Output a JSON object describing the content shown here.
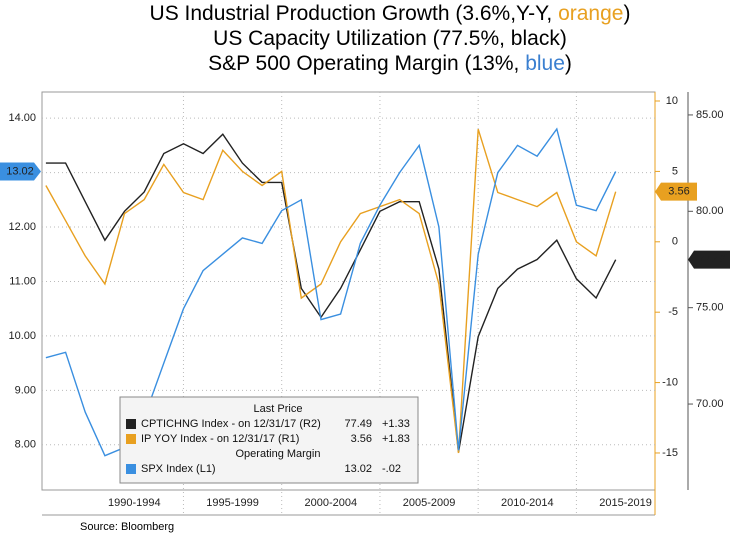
{
  "chart_data": {
    "type": "line",
    "title_lines": [
      {
        "text": "US Industrial Production Growth (3.6%,Y-Y, ",
        "highlight": "orange",
        "tail": ")",
        "highlight_color": "#e8a020"
      },
      {
        "text": "US Capacity Utilization (77.5%,  black)"
      },
      {
        "text": "S&P 500 Operating Margin (13%, ",
        "highlight": "blue",
        "tail": ")",
        "highlight_color": "#3a7fd0"
      }
    ],
    "source": "Source: Bloomberg",
    "x": [
      1988,
      1989,
      1990,
      1991,
      1992,
      1993,
      1994,
      1995,
      1996,
      1997,
      1998,
      1999,
      2000,
      2001,
      2002,
      2003,
      2004,
      2005,
      2006,
      2007,
      2008,
      2009,
      2010,
      2011,
      2012,
      2013,
      2014,
      2015,
      2016,
      2017
    ],
    "xlim": [
      1987.8,
      2019
    ],
    "xticks": [
      {
        "value": 1992.5,
        "label": "1990-1994"
      },
      {
        "value": 1997.5,
        "label": "1995-1999"
      },
      {
        "value": 2002.5,
        "label": "2000-2004"
      },
      {
        "value": 2007.5,
        "label": "2005-2009"
      },
      {
        "value": 2012.5,
        "label": "2010-2014"
      },
      {
        "value": 2017.5,
        "label": "2015-2019"
      }
    ],
    "ylim": [
      7.17,
      14.48
    ],
    "yticks": [
      {
        "value": 8,
        "label": "8.00"
      },
      {
        "value": 9,
        "label": "9.00"
      },
      {
        "value": 10,
        "label": "10.00"
      },
      {
        "value": 11,
        "label": "11.00"
      },
      {
        "value": 12,
        "label": "12.00"
      },
      {
        "value": 13,
        "label": "13.00"
      },
      {
        "value": 14,
        "label": "14.00"
      }
    ],
    "y2lim": [
      -17.63,
      10.64
    ],
    "y2ticks": [
      -15,
      -10,
      -5,
      0,
      5,
      10
    ],
    "y3lim": [
      65.54,
      86.19
    ],
    "y3ticks": [
      {
        "value": 70,
        "label": "70.00"
      },
      {
        "value": 75,
        "label": "75.00"
      },
      {
        "value": 80,
        "label": "80.00"
      },
      {
        "value": 85,
        "label": "85.00"
      }
    ],
    "grid": true,
    "legend_title": "Last Price",
    "legend_subtitle": "Operating Margin",
    "series": [
      {
        "name": "CPTICHNG Index -  on 12/31/17  (R2)",
        "color": "#222222",
        "axis": "y3",
        "last": 77.49,
        "change": "+1.33",
        "values": [
          82.5,
          82.5,
          80.5,
          78.5,
          80,
          81,
          83,
          83.5,
          83,
          84,
          82.5,
          81.5,
          81.5,
          76,
          74.5,
          76,
          78,
          80,
          80.5,
          80.5,
          77,
          67.5,
          73.5,
          76,
          77,
          77.5,
          78.5,
          76.5,
          75.5,
          77.49
        ]
      },
      {
        "name": "IP  YOY Index -  on 12/31/17  (R1)",
        "color": "#e8a020",
        "axis": "y2",
        "last": 3.56,
        "change": "+1.83",
        "values": [
          4,
          1.5,
          -1,
          -3,
          2,
          3,
          5.5,
          3.5,
          3,
          6.5,
          5,
          4,
          5,
          -4,
          -3,
          0,
          2,
          2.5,
          3,
          2,
          -3,
          -15,
          8,
          3.5,
          3,
          2.5,
          3.5,
          0,
          -1,
          3.56
        ]
      },
      {
        "name": "SPX Index  (L1)",
        "color": "#3a8fe0",
        "axis": "y",
        "last": 13.02,
        "change": "-.02",
        "values": [
          9.6,
          9.7,
          8.6,
          7.8,
          7.95,
          8.5,
          9.5,
          10.5,
          11.2,
          11.5,
          11.8,
          11.7,
          12.3,
          12.5,
          10.3,
          10.4,
          11.7,
          12.4,
          13,
          13.5,
          12,
          7.9,
          11.5,
          13,
          13.5,
          13.3,
          13.8,
          12.4,
          12.3,
          13.02
        ]
      }
    ]
  }
}
